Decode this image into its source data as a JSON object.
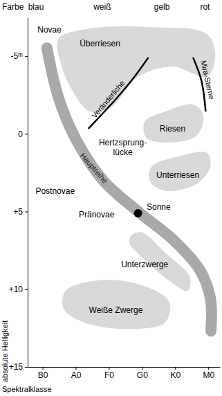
{
  "chart_data": {
    "type": "region",
    "x_label": "Spektralklasse",
    "y_label": "absolute Helligkeit",
    "xlim": [
      -0.45,
      5.35
    ],
    "ylim": [
      -7.5,
      15
    ],
    "xticks": [
      {
        "value": 0,
        "label": "B0"
      },
      {
        "value": 1,
        "label": "A0"
      },
      {
        "value": 2,
        "label": "F0"
      },
      {
        "value": 3,
        "label": "G0"
      },
      {
        "value": 4,
        "label": "K0"
      },
      {
        "value": 5,
        "label": "M0"
      }
    ],
    "yticks": [
      {
        "value": -5,
        "label": "-5ᵐ"
      },
      0,
      {
        "value": 5,
        "label": "+5"
      },
      {
        "value": 10,
        "label": "+10"
      },
      {
        "value": 15,
        "label": "+15"
      }
    ],
    "color_axis": {
      "title": "Farbe",
      "labels": [
        "blau",
        "weiß",
        "gelb",
        "rot"
      ],
      "positions": [
        -0.2,
        1.8,
        3.6,
        4.9
      ]
    },
    "regions": [
      {
        "name": "Überriesen",
        "x": [
          0.48,
          1.42,
          3.29,
          4.96,
          5.21,
          4.96,
          3.92,
          2.88,
          2.04,
          1.42,
          0.9,
          0.58
        ],
        "y": [
          -6.11,
          -6.78,
          -6.87,
          -6.42,
          -5.0,
          -3.67,
          -4.33,
          -3.67,
          -1.67,
          -1.44,
          -2.78,
          -4.33
        ],
        "label_x": 1.73,
        "label_y": -5.8
      },
      {
        "name": "Riesen",
        "x": [
          3.08,
          3.71,
          4.54,
          4.85,
          4.65,
          3.71,
          3.13
        ],
        "y": [
          -0.78,
          -1.44,
          -1.89,
          -1.22,
          0.11,
          0.56,
          0.24
        ],
        "label_x": 3.92,
        "label_y": -0.33
      },
      {
        "name": "Unterriesen",
        "x": [
          3.29,
          4.13,
          4.96,
          5.06,
          4.65,
          3.71,
          3.25
        ],
        "y": [
          2.11,
          1.44,
          1.22,
          2.11,
          3.22,
          3.67,
          3.09
        ],
        "label_x": 4.08,
        "label_y": 2.64
      },
      {
        "name": "Unterzwerge",
        "x": [
          2.67,
          2.98,
          3.71,
          4.44,
          4.38,
          3.81,
          2.98,
          2.63
        ],
        "y": [
          6.56,
          6.33,
          7.67,
          9.22,
          10.11,
          9.44,
          7.89,
          7.09
        ],
        "label_x": 3.08,
        "label_y": 8.42
      },
      {
        "name": "Weiße Zwerge",
        "x": [
          0.69,
          1.63,
          2.88,
          3.81,
          3.71,
          2.67,
          1.21,
          0.63
        ],
        "y": [
          10.11,
          9.44,
          9.67,
          10.78,
          12.11,
          12.56,
          12.11,
          11.22
        ],
        "label_x": 2.21,
        "label_y": 11.36
      }
    ],
    "band": {
      "name": "Hauptreihe",
      "x": [
        0.13,
        0.48,
        1.0,
        1.83,
        2.88,
        3.92,
        4.75,
        5.06,
        5.08
      ],
      "y": [
        -5.53,
        -2.33,
        0.33,
        3.0,
        5.0,
        6.78,
        8.78,
        10.56,
        12.69
      ],
      "label_x": 1.55,
      "label_y": 2.2
    },
    "lines": [
      {
        "name": "Veränderliche",
        "x": [
          1.38,
          2.25,
          2.77,
          3.19
        ],
        "y": [
          -0.33,
          -2.33,
          -3.67,
          -4.91
        ],
        "label_x": 2.04,
        "label_y": -2.11
      },
      {
        "name": "Mira-Sterne",
        "x": [
          4.54,
          4.79,
          4.92
        ],
        "y": [
          -4.91,
          -3.44,
          -1.44
        ],
        "label_x": 4.9,
        "label_y": -3.44
      }
    ],
    "points": [
      {
        "name": "Sonne",
        "x": 2.88,
        "y": 5.11,
        "label_x": 3.5,
        "label_y": 4.69
      }
    ],
    "labels": [
      {
        "lines": [
          "Novae"
        ],
        "x": 0.21,
        "y": -6.7
      },
      {
        "lines": [
          "Hertzsprung-",
          "lücke"
        ],
        "x": 2.42,
        "y": 0.88
      },
      {
        "lines": [
          "Postnovae"
        ],
        "x": 0.38,
        "y": 3.67
      },
      {
        "lines": [
          "Pränovae"
        ],
        "x": 1.63,
        "y": 5.22
      }
    ]
  }
}
